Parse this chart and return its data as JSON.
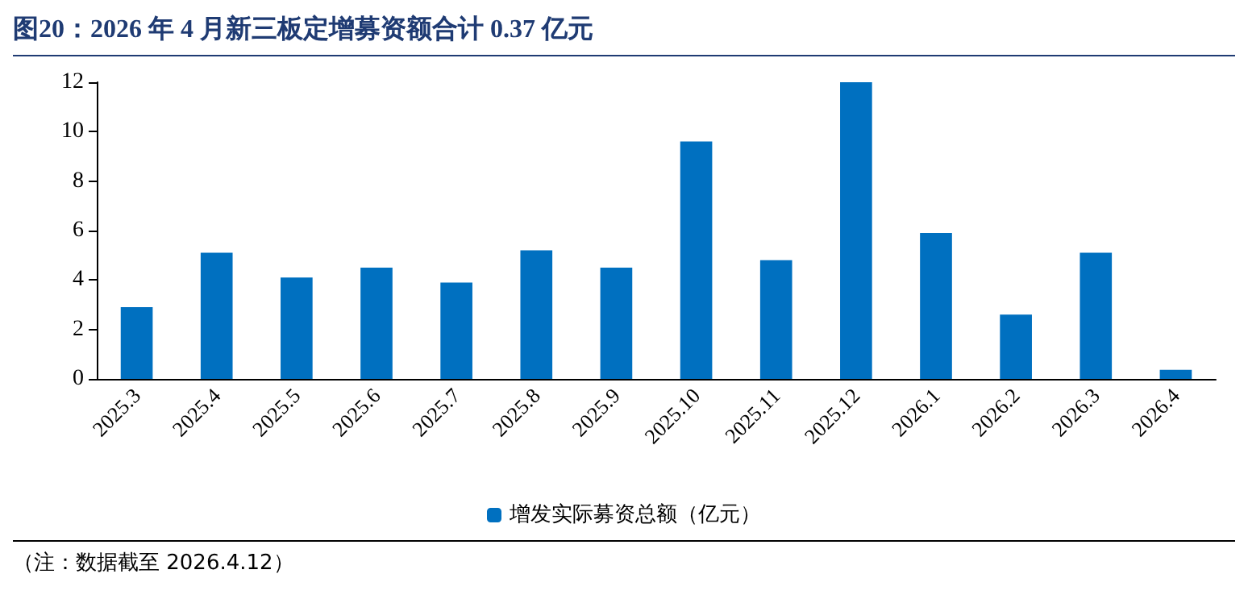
{
  "chart_data": {
    "type": "bar",
    "title": "图20：2026 年 4 月新三板定增募资额合计 0.37 亿元",
    "categories": [
      "2025.3",
      "2025.4",
      "2025.5",
      "2025.6",
      "2025.7",
      "2025.8",
      "2025.9",
      "2025.10",
      "2025.11",
      "2025.12",
      "2026.1",
      "2026.2",
      "2026.3",
      "2026.4"
    ],
    "series": [
      {
        "name": "增发实际募资总额（亿元）",
        "color": "#0070c0",
        "values": [
          2.9,
          5.1,
          4.1,
          4.5,
          3.9,
          5.2,
          4.5,
          9.6,
          4.8,
          12,
          5.9,
          2.6,
          5.1,
          0.37
        ]
      }
    ],
    "ylim": [
      0,
      12
    ],
    "yticks": [
      0,
      2,
      4,
      6,
      8,
      10,
      12
    ],
    "grid": false,
    "legend": "bottom",
    "annotations": [
      "（注：数据截至 2026.4.12）"
    ]
  }
}
